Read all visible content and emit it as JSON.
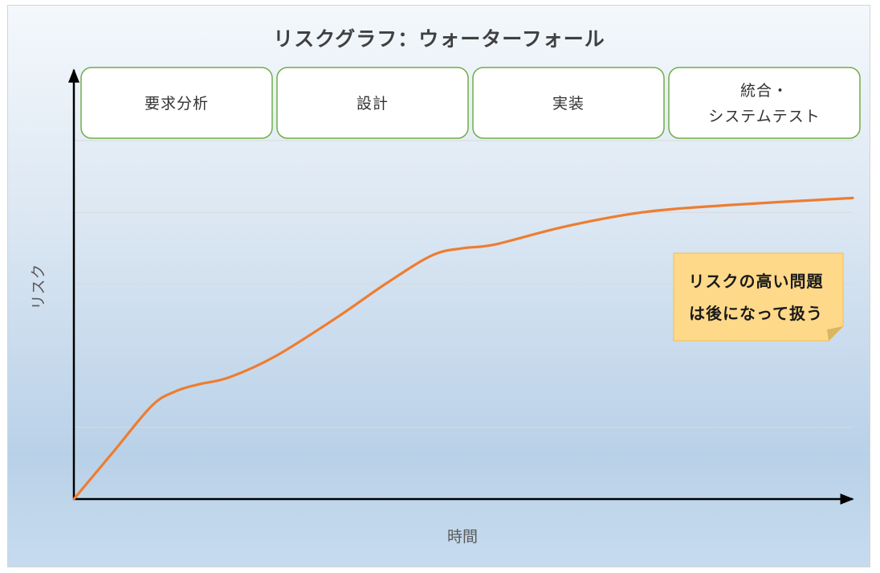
{
  "chart_data": {
    "type": "line",
    "title": "リスクグラフ：ウォーターフォール",
    "xlabel": "時間",
    "ylabel": "リスク",
    "xlim": [
      0,
      100
    ],
    "ylim": [
      0,
      100
    ],
    "grid": "horizontal",
    "phases": [
      {
        "label_lines": [
          "要求分析"
        ]
      },
      {
        "label_lines": [
          "設計"
        ]
      },
      {
        "label_lines": [
          "実装"
        ]
      },
      {
        "label_lines": [
          "統合・",
          "システムテスト"
        ]
      }
    ],
    "series": [
      {
        "color": "#ED7D31",
        "points": [
          [
            0,
            0
          ],
          [
            5,
            13
          ],
          [
            10,
            26
          ],
          [
            13,
            30
          ],
          [
            16,
            32
          ],
          [
            20,
            34
          ],
          [
            26,
            40
          ],
          [
            34,
            51
          ],
          [
            40,
            60
          ],
          [
            46,
            68
          ],
          [
            50,
            70
          ],
          [
            54,
            71
          ],
          [
            63,
            76
          ],
          [
            73,
            80
          ],
          [
            84,
            82
          ],
          [
            100,
            84
          ]
        ]
      }
    ],
    "annotation": {
      "text_lines": [
        "リスクの高い問題",
        "は後になって扱う"
      ],
      "fill": "#FFD98A",
      "border": "#F2C14E"
    },
    "colors": {
      "axis": "#000000",
      "phase_border": "#70AD47",
      "phase_fill": "#FFFFFF",
      "gridline": "#D9D9D9"
    }
  }
}
